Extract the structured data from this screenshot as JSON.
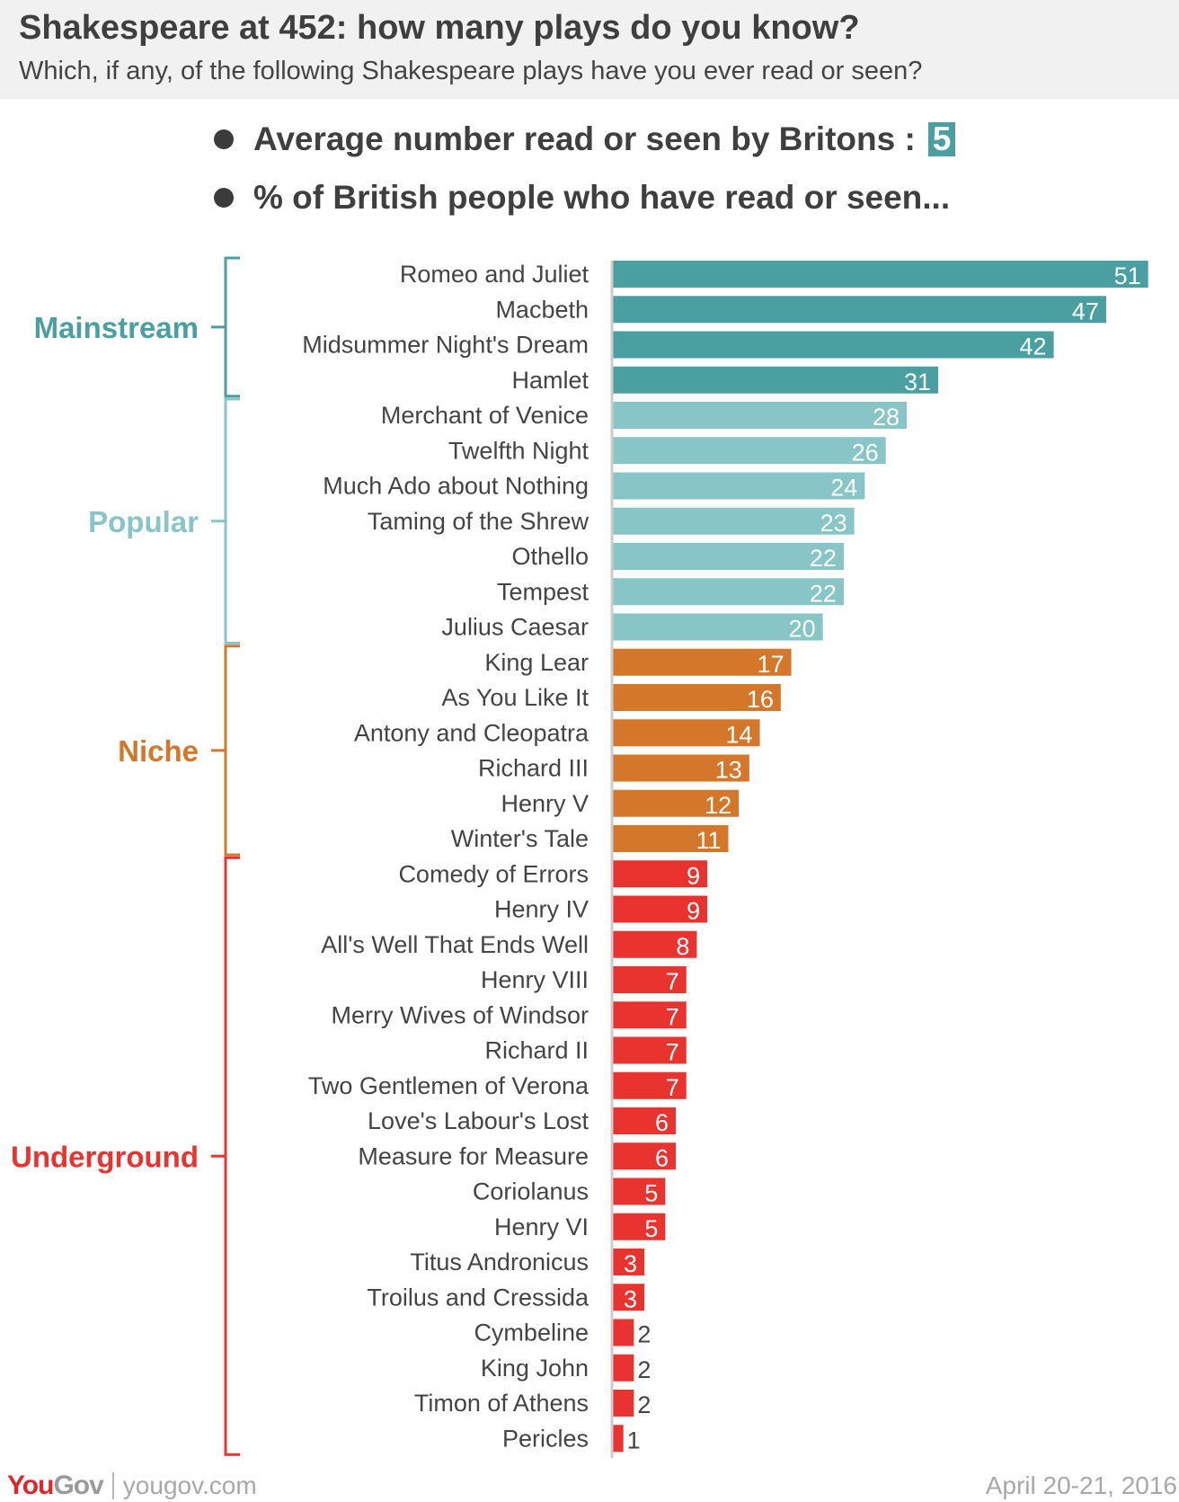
{
  "header": {
    "title": "Shakespeare at 452: how many plays do you know?",
    "subtitle": "Which, if any, of the following Shakespeare plays have you ever read or seen?"
  },
  "summary": {
    "average_label": "Average number read or seen by Britons :",
    "average_value": "5",
    "percent_label": "% of British people who have read or seen..."
  },
  "chart_data": {
    "type": "bar",
    "orientation": "horizontal",
    "title": "",
    "xlabel": "",
    "ylabel": "",
    "xlim": [
      0,
      51
    ],
    "grid": false,
    "categories": [
      "Romeo and Juliet",
      "Macbeth",
      "Midsummer Night's Dream",
      "Hamlet",
      "Merchant of Venice",
      "Twelfth Night",
      "Much Ado about Nothing",
      "Taming of the Shrew",
      "Othello",
      "Tempest",
      "Julius Caesar",
      "King Lear",
      "As You Like It",
      "Antony and Cleopatra",
      "Richard III",
      "Henry V",
      "Winter's Tale",
      "Comedy of Errors",
      "Henry IV",
      "All's Well That Ends Well",
      "Henry VIII",
      "Merry Wives of Windsor",
      "Richard II",
      "Two Gentlemen of Verona",
      "Love's Labour's Lost",
      "Measure for Measure",
      "Coriolanus",
      "Henry VI",
      "Titus Andronicus",
      "Troilus and Cressida",
      "Cymbeline",
      "King John",
      "Timon of Athens",
      "Pericles"
    ],
    "values": [
      51,
      47,
      42,
      31,
      28,
      26,
      24,
      23,
      22,
      22,
      20,
      17,
      16,
      14,
      13,
      12,
      11,
      9,
      9,
      8,
      7,
      7,
      7,
      7,
      6,
      6,
      5,
      5,
      3,
      3,
      2,
      2,
      2,
      1
    ],
    "groups": [
      {
        "name": "Mainstream",
        "start": 0,
        "end": 3,
        "color": "#4a9fa0"
      },
      {
        "name": "Popular",
        "start": 4,
        "end": 10,
        "color": "#88c5c6"
      },
      {
        "name": "Niche",
        "start": 11,
        "end": 16,
        "color": "#d5772a"
      },
      {
        "name": "Underground",
        "start": 17,
        "end": 33,
        "color": "#e8332f"
      }
    ]
  },
  "footer": {
    "logo_you": "You",
    "logo_gov": "Gov",
    "url": "yougov.com",
    "date": "April 20-21, 2016"
  }
}
